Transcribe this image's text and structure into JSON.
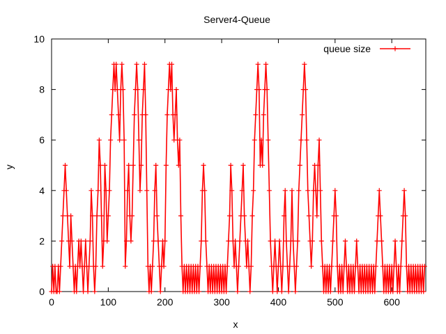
{
  "chart_data": {
    "type": "line",
    "title": "Server4-Queue",
    "xlabel": "x",
    "ylabel": "y",
    "xlim": [
      0,
      660
    ],
    "ylim": [
      0,
      10
    ],
    "xticks": [
      0,
      100,
      200,
      300,
      400,
      500,
      600
    ],
    "yticks": [
      0,
      2,
      4,
      6,
      8,
      10
    ],
    "grid": false,
    "legend_position": "top-right",
    "series": [
      {
        "name": "queue size",
        "color": "#ff0000",
        "marker": "plus",
        "points": [
          [
            0,
            0
          ],
          [
            2,
            1
          ],
          [
            4,
            0
          ],
          [
            6,
            1
          ],
          [
            8,
            0
          ],
          [
            10,
            0
          ],
          [
            12,
            1
          ],
          [
            14,
            0
          ],
          [
            16,
            1
          ],
          [
            18,
            2
          ],
          [
            20,
            3
          ],
          [
            22,
            4
          ],
          [
            24,
            5
          ],
          [
            26,
            4
          ],
          [
            28,
            3
          ],
          [
            30,
            2
          ],
          [
            32,
            1
          ],
          [
            34,
            3
          ],
          [
            36,
            2
          ],
          [
            38,
            1
          ],
          [
            40,
            0
          ],
          [
            42,
            1
          ],
          [
            44,
            0
          ],
          [
            46,
            1
          ],
          [
            48,
            2
          ],
          [
            50,
            1
          ],
          [
            52,
            2
          ],
          [
            54,
            1
          ],
          [
            56,
            0
          ],
          [
            58,
            1
          ],
          [
            60,
            2
          ],
          [
            62,
            1
          ],
          [
            64,
            0
          ],
          [
            66,
            1
          ],
          [
            68,
            2
          ],
          [
            70,
            4
          ],
          [
            72,
            3
          ],
          [
            74,
            1
          ],
          [
            76,
            0
          ],
          [
            78,
            1
          ],
          [
            80,
            3
          ],
          [
            82,
            4
          ],
          [
            84,
            6
          ],
          [
            86,
            5
          ],
          [
            88,
            3
          ],
          [
            90,
            1
          ],
          [
            92,
            2
          ],
          [
            94,
            5
          ],
          [
            96,
            4
          ],
          [
            98,
            2
          ],
          [
            100,
            3
          ],
          [
            102,
            4
          ],
          [
            104,
            6
          ],
          [
            106,
            7
          ],
          [
            108,
            8
          ],
          [
            110,
            9
          ],
          [
            112,
            8
          ],
          [
            114,
            9
          ],
          [
            116,
            8
          ],
          [
            118,
            7
          ],
          [
            120,
            6
          ],
          [
            122,
            8
          ],
          [
            124,
            9
          ],
          [
            126,
            8
          ],
          [
            128,
            6
          ],
          [
            130,
            1
          ],
          [
            132,
            2
          ],
          [
            134,
            4
          ],
          [
            136,
            5
          ],
          [
            138,
            3
          ],
          [
            140,
            2
          ],
          [
            142,
            3
          ],
          [
            144,
            5
          ],
          [
            146,
            7
          ],
          [
            148,
            8
          ],
          [
            150,
            9
          ],
          [
            152,
            8
          ],
          [
            154,
            6
          ],
          [
            156,
            4
          ],
          [
            158,
            5
          ],
          [
            160,
            7
          ],
          [
            162,
            8
          ],
          [
            164,
            9
          ],
          [
            166,
            7
          ],
          [
            168,
            4
          ],
          [
            170,
            1
          ],
          [
            172,
            0
          ],
          [
            174,
            1
          ],
          [
            176,
            0
          ],
          [
            178,
            1
          ],
          [
            180,
            2
          ],
          [
            182,
            4
          ],
          [
            184,
            5
          ],
          [
            186,
            3
          ],
          [
            188,
            2
          ],
          [
            190,
            1
          ],
          [
            192,
            0
          ],
          [
            194,
            1
          ],
          [
            196,
            2
          ],
          [
            198,
            1
          ],
          [
            200,
            2
          ],
          [
            202,
            5
          ],
          [
            204,
            7
          ],
          [
            206,
            8
          ],
          [
            208,
            9
          ],
          [
            210,
            8
          ],
          [
            212,
            9
          ],
          [
            214,
            7
          ],
          [
            216,
            6
          ],
          [
            218,
            7
          ],
          [
            220,
            8
          ],
          [
            222,
            6
          ],
          [
            224,
            5
          ],
          [
            226,
            6
          ],
          [
            228,
            3
          ],
          [
            230,
            1
          ],
          [
            232,
            0
          ],
          [
            234,
            1
          ],
          [
            236,
            0
          ],
          [
            238,
            1
          ],
          [
            240,
            0
          ],
          [
            242,
            1
          ],
          [
            244,
            0
          ],
          [
            246,
            1
          ],
          [
            248,
            0
          ],
          [
            250,
            1
          ],
          [
            252,
            0
          ],
          [
            254,
            1
          ],
          [
            256,
            0
          ],
          [
            258,
            1
          ],
          [
            260,
            0
          ],
          [
            262,
            1
          ],
          [
            264,
            2
          ],
          [
            266,
            4
          ],
          [
            268,
            5
          ],
          [
            270,
            4
          ],
          [
            272,
            2
          ],
          [
            274,
            1
          ],
          [
            276,
            0
          ],
          [
            278,
            1
          ],
          [
            280,
            0
          ],
          [
            282,
            1
          ],
          [
            284,
            0
          ],
          [
            286,
            1
          ],
          [
            288,
            0
          ],
          [
            290,
            1
          ],
          [
            292,
            0
          ],
          [
            294,
            1
          ],
          [
            296,
            0
          ],
          [
            298,
            1
          ],
          [
            300,
            0
          ],
          [
            302,
            1
          ],
          [
            304,
            0
          ],
          [
            306,
            1
          ],
          [
            308,
            0
          ],
          [
            310,
            1
          ],
          [
            312,
            2
          ],
          [
            314,
            3
          ],
          [
            316,
            5
          ],
          [
            318,
            4
          ],
          [
            320,
            2
          ],
          [
            322,
            1
          ],
          [
            324,
            2
          ],
          [
            326,
            1
          ],
          [
            328,
            0
          ],
          [
            330,
            1
          ],
          [
            332,
            2
          ],
          [
            334,
            3
          ],
          [
            336,
            4
          ],
          [
            338,
            5
          ],
          [
            340,
            3
          ],
          [
            342,
            2
          ],
          [
            344,
            1
          ],
          [
            346,
            2
          ],
          [
            348,
            1
          ],
          [
            350,
            0
          ],
          [
            352,
            1
          ],
          [
            354,
            3
          ],
          [
            356,
            4
          ],
          [
            358,
            6
          ],
          [
            360,
            7
          ],
          [
            362,
            8
          ],
          [
            364,
            9
          ],
          [
            366,
            8
          ],
          [
            368,
            5
          ],
          [
            370,
            6
          ],
          [
            372,
            5
          ],
          [
            374,
            7
          ],
          [
            376,
            8
          ],
          [
            378,
            9
          ],
          [
            380,
            8
          ],
          [
            382,
            6
          ],
          [
            384,
            4
          ],
          [
            386,
            2
          ],
          [
            388,
            1
          ],
          [
            390,
            0
          ],
          [
            392,
            1
          ],
          [
            394,
            2
          ],
          [
            396,
            1
          ],
          [
            398,
            0
          ],
          [
            400,
            1
          ],
          [
            402,
            2
          ],
          [
            404,
            1
          ],
          [
            406,
            0
          ],
          [
            408,
            1
          ],
          [
            410,
            3
          ],
          [
            412,
            4
          ],
          [
            414,
            2
          ],
          [
            416,
            1
          ],
          [
            418,
            0
          ],
          [
            420,
            1
          ],
          [
            422,
            2
          ],
          [
            424,
            4
          ],
          [
            426,
            2
          ],
          [
            428,
            1
          ],
          [
            430,
            0
          ],
          [
            432,
            1
          ],
          [
            434,
            2
          ],
          [
            436,
            4
          ],
          [
            438,
            5
          ],
          [
            440,
            6
          ],
          [
            442,
            7
          ],
          [
            444,
            8
          ],
          [
            446,
            9
          ],
          [
            448,
            8
          ],
          [
            450,
            6
          ],
          [
            452,
            4
          ],
          [
            454,
            3
          ],
          [
            456,
            2
          ],
          [
            458,
            1
          ],
          [
            460,
            2
          ],
          [
            462,
            4
          ],
          [
            464,
            5
          ],
          [
            466,
            4
          ],
          [
            468,
            3
          ],
          [
            470,
            5
          ],
          [
            472,
            6
          ],
          [
            474,
            4
          ],
          [
            476,
            2
          ],
          [
            478,
            1
          ],
          [
            480,
            0
          ],
          [
            482,
            1
          ],
          [
            484,
            0
          ],
          [
            486,
            1
          ],
          [
            488,
            0
          ],
          [
            490,
            1
          ],
          [
            492,
            0
          ],
          [
            494,
            1
          ],
          [
            496,
            2
          ],
          [
            498,
            3
          ],
          [
            500,
            4
          ],
          [
            502,
            3
          ],
          [
            504,
            1
          ],
          [
            506,
            0
          ],
          [
            508,
            1
          ],
          [
            510,
            0
          ],
          [
            512,
            1
          ],
          [
            514,
            0
          ],
          [
            516,
            1
          ],
          [
            518,
            2
          ],
          [
            520,
            1
          ],
          [
            522,
            0
          ],
          [
            524,
            1
          ],
          [
            526,
            0
          ],
          [
            528,
            1
          ],
          [
            530,
            0
          ],
          [
            532,
            1
          ],
          [
            534,
            0
          ],
          [
            536,
            1
          ],
          [
            538,
            2
          ],
          [
            540,
            1
          ],
          [
            542,
            0
          ],
          [
            544,
            1
          ],
          [
            546,
            0
          ],
          [
            548,
            1
          ],
          [
            550,
            0
          ],
          [
            552,
            1
          ],
          [
            554,
            0
          ],
          [
            556,
            1
          ],
          [
            558,
            0
          ],
          [
            560,
            1
          ],
          [
            562,
            0
          ],
          [
            564,
            1
          ],
          [
            566,
            0
          ],
          [
            568,
            1
          ],
          [
            570,
            0
          ],
          [
            572,
            1
          ],
          [
            574,
            2
          ],
          [
            576,
            3
          ],
          [
            578,
            4
          ],
          [
            580,
            3
          ],
          [
            582,
            2
          ],
          [
            584,
            1
          ],
          [
            586,
            0
          ],
          [
            588,
            1
          ],
          [
            590,
            0
          ],
          [
            592,
            1
          ],
          [
            594,
            0
          ],
          [
            596,
            1
          ],
          [
            598,
            0
          ],
          [
            600,
            1
          ],
          [
            602,
            0
          ],
          [
            604,
            1
          ],
          [
            606,
            2
          ],
          [
            608,
            1
          ],
          [
            610,
            0
          ],
          [
            612,
            1
          ],
          [
            614,
            0
          ],
          [
            616,
            1
          ],
          [
            618,
            2
          ],
          [
            620,
            3
          ],
          [
            622,
            4
          ],
          [
            624,
            3
          ],
          [
            626,
            1
          ],
          [
            628,
            0
          ],
          [
            630,
            1
          ],
          [
            632,
            0
          ],
          [
            634,
            1
          ],
          [
            636,
            0
          ],
          [
            638,
            1
          ],
          [
            640,
            0
          ],
          [
            642,
            1
          ],
          [
            644,
            0
          ],
          [
            646,
            1
          ],
          [
            648,
            0
          ],
          [
            650,
            1
          ],
          [
            652,
            0
          ],
          [
            654,
            1
          ],
          [
            656,
            0
          ],
          [
            658,
            1
          ]
        ]
      }
    ]
  }
}
